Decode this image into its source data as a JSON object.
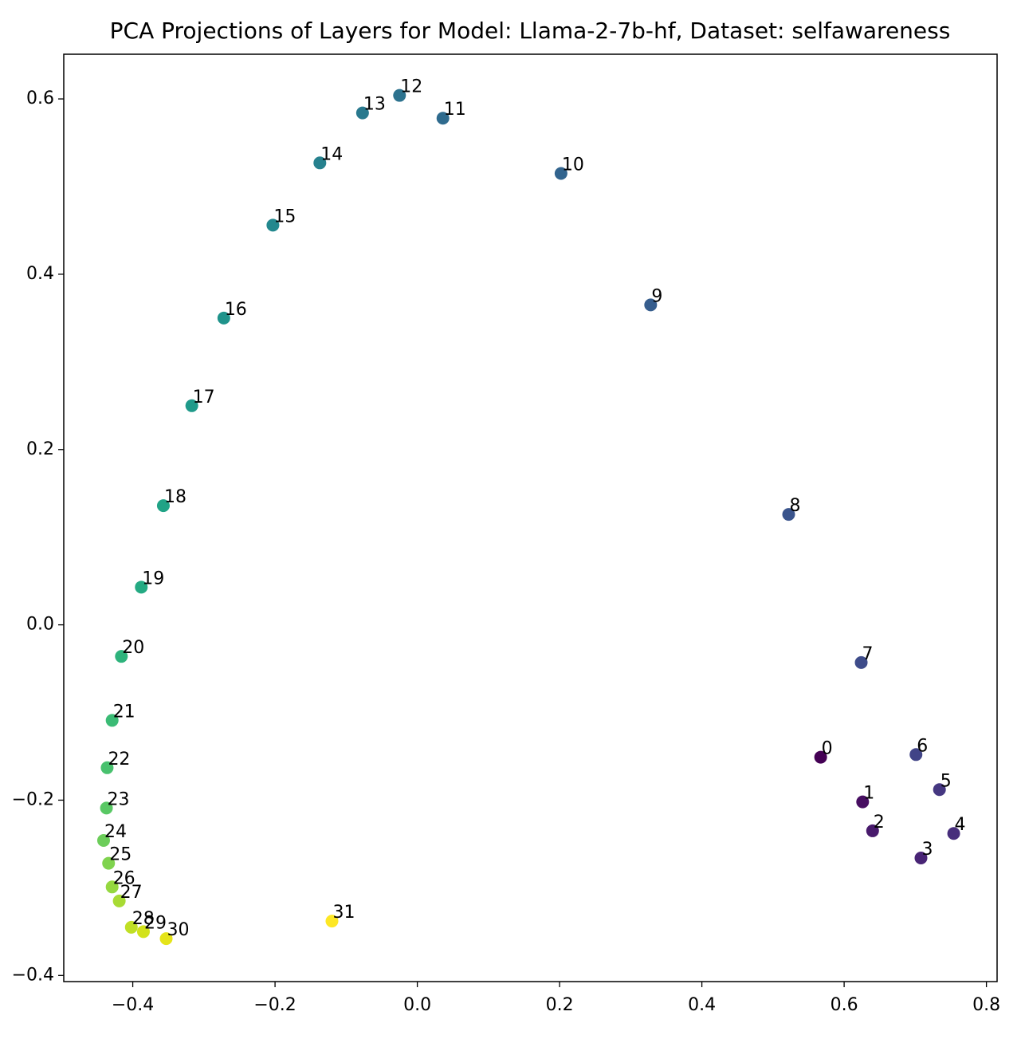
{
  "chart_data": {
    "type": "scatter",
    "title": "PCA Projections of Layers for Model: Llama-2-7b-hf, Dataset: selfawareness",
    "series": [
      {
        "labels": [
          "0",
          "1",
          "2",
          "3",
          "4",
          "5",
          "6",
          "7",
          "8",
          "9",
          "10",
          "11",
          "12",
          "13",
          "14",
          "15",
          "16",
          "17",
          "18",
          "19",
          "20",
          "21",
          "22",
          "23",
          "24",
          "25",
          "26",
          "27",
          "28",
          "29",
          "30",
          "31"
        ],
        "x": [
          0.567,
          0.626,
          0.64,
          0.708,
          0.754,
          0.734,
          0.701,
          0.624,
          0.522,
          0.328,
          0.202,
          0.036,
          -0.025,
          -0.077,
          -0.137,
          -0.203,
          -0.272,
          -0.317,
          -0.357,
          -0.388,
          -0.416,
          -0.429,
          -0.436,
          -0.437,
          -0.441,
          -0.434,
          -0.429,
          -0.419,
          -0.402,
          -0.385,
          -0.353,
          -0.12
        ],
        "values": [
          -0.151,
          -0.202,
          -0.235,
          -0.266,
          -0.238,
          -0.188,
          -0.148,
          -0.043,
          0.126,
          0.365,
          0.515,
          0.578,
          0.604,
          0.584,
          0.527,
          0.456,
          0.35,
          0.25,
          0.136,
          0.043,
          -0.036,
          -0.109,
          -0.163,
          -0.209,
          -0.246,
          -0.272,
          -0.299,
          -0.315,
          -0.345,
          -0.35,
          -0.358,
          -0.338
        ],
        "colors": [
          "#440154",
          "#470e61",
          "#481a6c",
          "#482475",
          "#472e7c",
          "#453781",
          "#414487",
          "#3e4c8a",
          "#3a548c",
          "#365d8d",
          "#32648e",
          "#2f6b8e",
          "#2c728e",
          "#29798e",
          "#26818e",
          "#23888e",
          "#1f938b",
          "#1f9a8a",
          "#20a386",
          "#24aa83",
          "#2eb37c",
          "#3bbb75",
          "#48c16e",
          "#59c864",
          "#6ccd5a",
          "#7fd34e",
          "#95d840",
          "#a8db34",
          "#c0df25",
          "#d2e21b",
          "#e5e419",
          "#fde725"
        ]
      }
    ],
    "xlim": [
      -0.497,
      0.815
    ],
    "ylim": [
      -0.407,
      0.651
    ],
    "xticks": [
      {
        "value": -0.4,
        "label": "−0.4"
      },
      {
        "value": -0.2,
        "label": "−0.2"
      },
      {
        "value": 0.0,
        "label": "0.0"
      },
      0.2,
      0.4,
      0.6,
      0.8
    ],
    "yticks": [
      {
        "value": -0.4,
        "label": "−0.4"
      },
      {
        "value": -0.2,
        "label": "−0.2"
      },
      {
        "value": 0.0,
        "label": "0.0"
      },
      0.2,
      0.4,
      0.6
    ]
  }
}
